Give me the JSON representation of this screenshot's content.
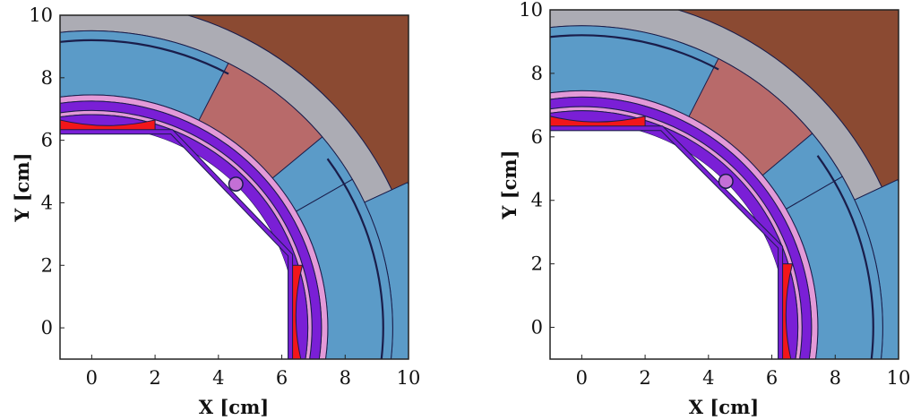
{
  "figure": {
    "panels": [
      {
        "xlabel": "X [cm]",
        "ylabel": "Y [cm]",
        "xlim": [
          -1,
          10
        ],
        "ylim": [
          -1,
          10
        ],
        "xticks": [
          "0",
          "2",
          "4",
          "6",
          "8",
          "10"
        ],
        "yticks": [
          "0",
          "2",
          "4",
          "6",
          "8",
          "10"
        ],
        "aperture_chamfer_start_x": 2.5,
        "aperture_chamfer_end_y": 2.3,
        "pipe_center": [
          4.55,
          4.6
        ]
      },
      {
        "xlabel": "X [cm]",
        "ylabel": "Y [cm]",
        "xlim": [
          -1,
          10
        ],
        "ylim": [
          -1,
          10
        ],
        "xticks": [
          "0",
          "2",
          "4",
          "6",
          "8",
          "10"
        ],
        "yticks": [
          "0",
          "2",
          "4",
          "6",
          "8",
          "10"
        ],
        "aperture_chamfer_start_x": 2.5,
        "aperture_chamfer_end_y": 2.5,
        "pipe_center": [
          4.55,
          4.6
        ]
      }
    ],
    "colors": {
      "coil_blue": "#5b9bc8",
      "wedge_red": "#b86a6a",
      "collar_gray": "#acacb4",
      "yoke_brown": "#8b4a32",
      "purple_ring": "#7a1fd6",
      "pink_ring": "#e39ad8",
      "red_shield": "#f2161a",
      "outline": "#1a1d4a"
    }
  }
}
